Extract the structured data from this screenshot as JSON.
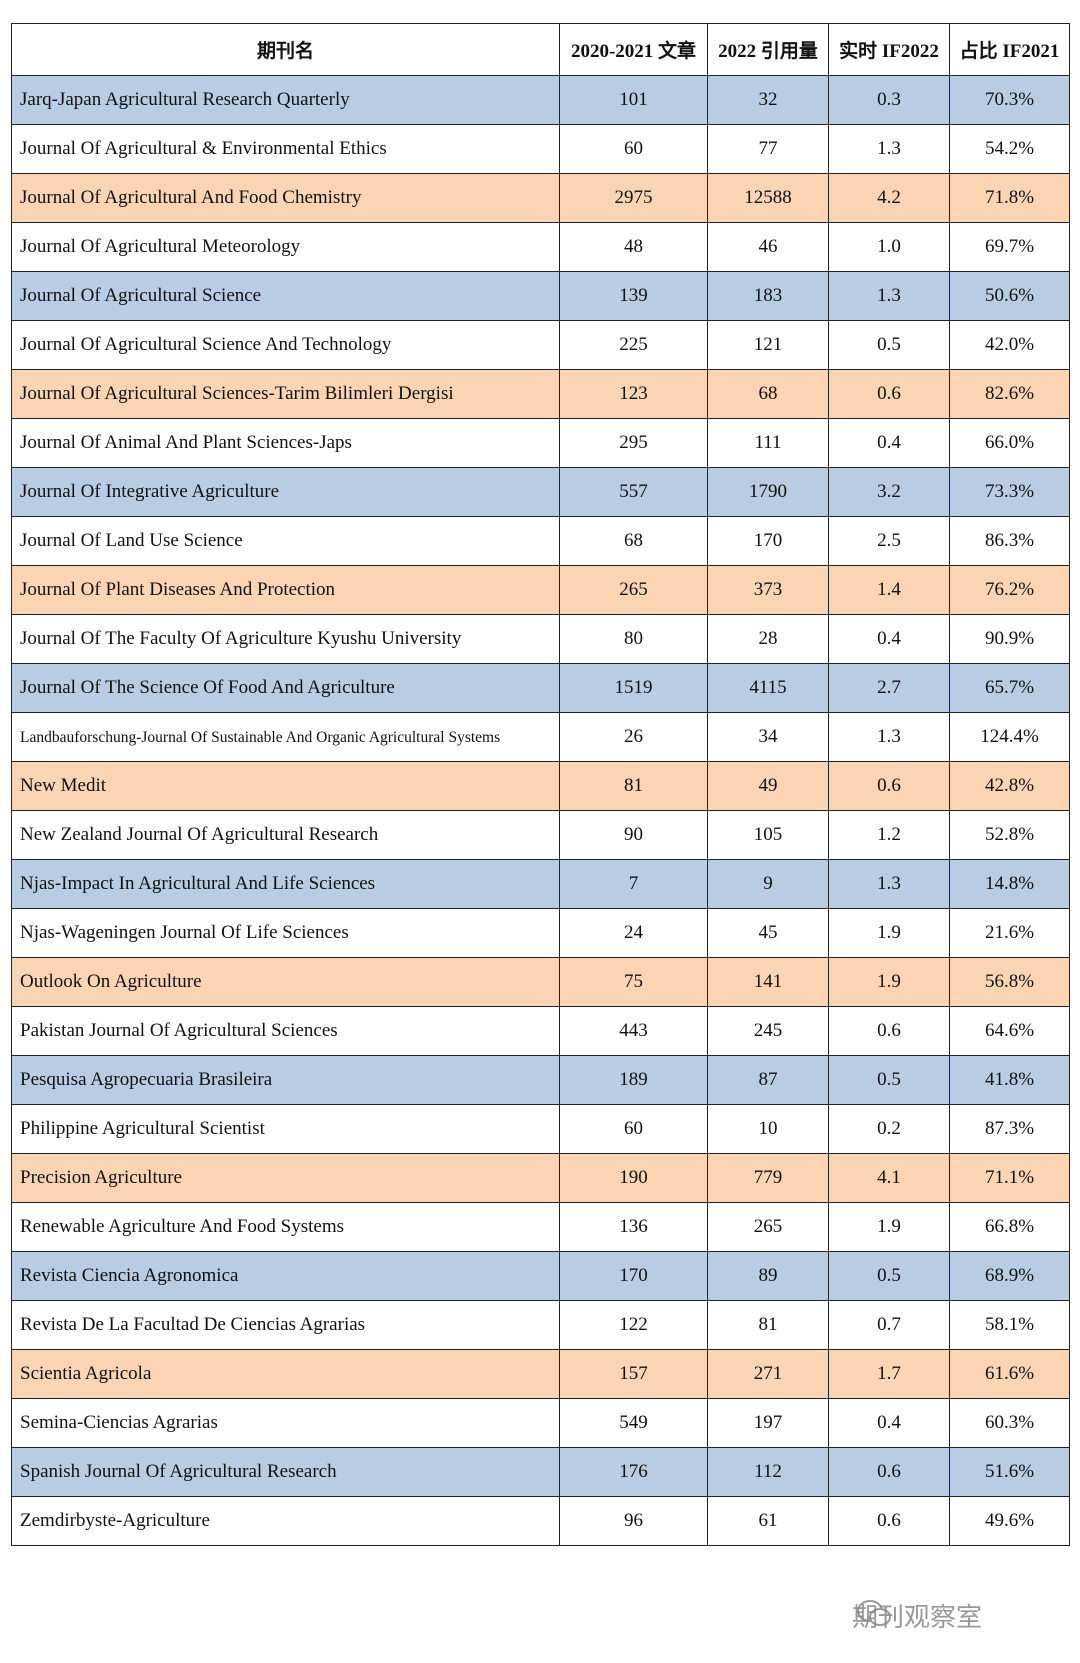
{
  "table": {
    "header": [
      "期刊名",
      "2020-2021 文章",
      "2022 引用量",
      "实时 IF2022",
      "占比 IF2021"
    ],
    "rows": [
      [
        "Jarq-Japan Agricultural Research Quarterly",
        "101",
        "32",
        "0.3",
        "70.3%"
      ],
      [
        "Journal Of Agricultural & Environmental Ethics",
        "60",
        "77",
        "1.3",
        "54.2%"
      ],
      [
        "Journal Of Agricultural And Food Chemistry",
        "2975",
        "12588",
        "4.2",
        "71.8%"
      ],
      [
        "Journal Of Agricultural Meteorology",
        "48",
        "46",
        "1.0",
        "69.7%"
      ],
      [
        "Journal Of Agricultural Science",
        "139",
        "183",
        "1.3",
        "50.6%"
      ],
      [
        "Journal Of Agricultural Science And Technology",
        "225",
        "121",
        "0.5",
        "42.0%"
      ],
      [
        "Journal Of Agricultural Sciences-Tarim Bilimleri Dergisi",
        "123",
        "68",
        "0.6",
        "82.6%"
      ],
      [
        "Journal Of Animal And Plant Sciences-Japs",
        "295",
        "111",
        "0.4",
        "66.0%"
      ],
      [
        "Journal Of Integrative Agriculture",
        "557",
        "1790",
        "3.2",
        "73.3%"
      ],
      [
        "Journal Of Land Use Science",
        "68",
        "170",
        "2.5",
        "86.3%"
      ],
      [
        "Journal Of Plant Diseases And Protection",
        "265",
        "373",
        "1.4",
        "76.2%"
      ],
      [
        "Journal Of The Faculty Of Agriculture Kyushu University",
        "80",
        "28",
        "0.4",
        "90.9%"
      ],
      [
        "Journal Of The Science Of Food And Agriculture",
        "1519",
        "4115",
        "2.7",
        "65.7%"
      ],
      [
        "Landbauforschung-Journal Of Sustainable And Organic Agricultural Systems",
        "26",
        "34",
        "1.3",
        "124.4%"
      ],
      [
        "New Medit",
        "81",
        "49",
        "0.6",
        "42.8%"
      ],
      [
        "New Zealand Journal Of Agricultural Research",
        "90",
        "105",
        "1.2",
        "52.8%"
      ],
      [
        "Njas-Impact In Agricultural And Life Sciences",
        "7",
        "9",
        "1.3",
        "14.8%"
      ],
      [
        "Njas-Wageningen Journal Of Life Sciences",
        "24",
        "45",
        "1.9",
        "21.6%"
      ],
      [
        "Outlook On Agriculture",
        "75",
        "141",
        "1.9",
        "56.8%"
      ],
      [
        "Pakistan Journal Of Agricultural Sciences",
        "443",
        "245",
        "0.6",
        "64.6%"
      ],
      [
        "Pesquisa Agropecuaria Brasileira",
        "189",
        "87",
        "0.5",
        "41.8%"
      ],
      [
        "Philippine Agricultural Scientist",
        "60",
        "10",
        "0.2",
        "87.3%"
      ],
      [
        "Precision Agriculture",
        "190",
        "779",
        "4.1",
        "71.1%"
      ],
      [
        "Renewable Agriculture And Food Systems",
        "136",
        "265",
        "1.9",
        "66.8%"
      ],
      [
        "Revista Ciencia Agronomica",
        "170",
        "89",
        "0.5",
        "68.9%"
      ],
      [
        "Revista De La Facultad De Ciencias Agrarias",
        "122",
        "81",
        "0.7",
        "58.1%"
      ],
      [
        "Scientia Agricola",
        "157",
        "271",
        "1.7",
        "61.6%"
      ],
      [
        "Semina-Ciencias Agrarias",
        "549",
        "197",
        "0.4",
        "60.3%"
      ],
      [
        "Spanish Journal Of Agricultural Research",
        "176",
        "112",
        "0.6",
        "51.6%"
      ],
      [
        "Zemdirbyste-Agriculture",
        "96",
        "61",
        "0.6",
        "49.6%"
      ]
    ]
  },
  "watermark": "期刊观察室"
}
